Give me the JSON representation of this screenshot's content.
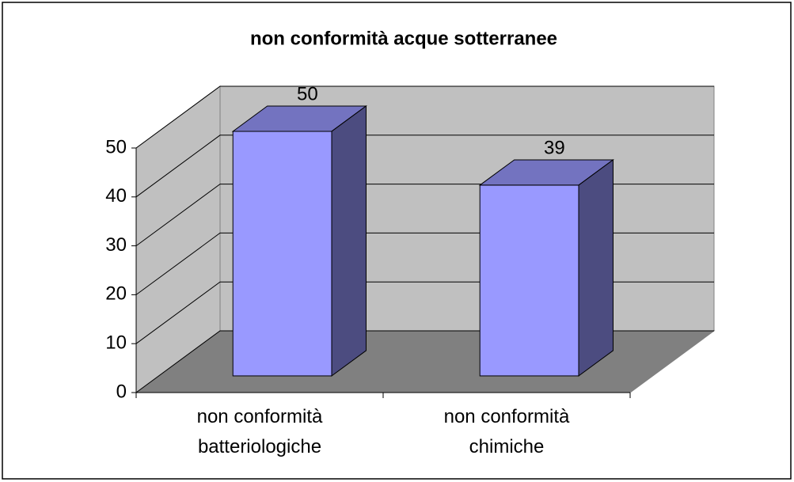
{
  "chart_data": {
    "type": "bar3d",
    "title": "non conformità acque sotterranee",
    "categories": [
      "non conformità batteriologiche",
      "non conformità chimiche"
    ],
    "values": [
      50,
      39
    ],
    "color": "#9999ff",
    "ylim": [
      0,
      50
    ],
    "yticks": [
      0,
      10,
      20,
      30,
      40,
      50
    ],
    "grid": true
  }
}
